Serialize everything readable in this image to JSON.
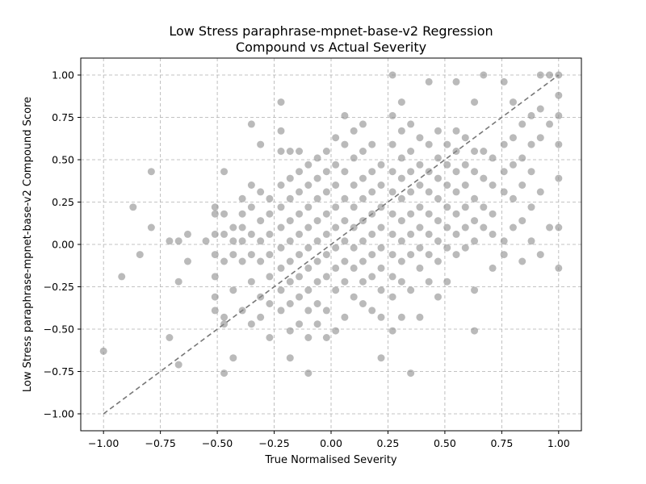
{
  "chart_data": {
    "type": "scatter",
    "title_line1": "Low Stress paraphrase-mpnet-base-v2 Regression",
    "title_line2": "Compound vs Actual Severity",
    "xlabel": "True Normalised Severity",
    "ylabel": "Low Stress paraphrase-mpnet-base-v2 Compound Score",
    "xlim": [
      -1.1,
      1.1
    ],
    "ylim": [
      -1.1,
      1.1
    ],
    "x_ticks": [
      {
        "value": -1.0,
        "label": "−1.00"
      },
      {
        "value": -0.75,
        "label": "−0.75"
      },
      {
        "value": -0.5,
        "label": "−0.50"
      },
      {
        "value": -0.25,
        "label": "−0.25"
      },
      {
        "value": 0.0,
        "label": "0.00"
      },
      {
        "value": 0.25,
        "label": "0.25"
      },
      {
        "value": 0.5,
        "label": "0.50"
      },
      {
        "value": 0.75,
        "label": "0.75"
      },
      {
        "value": 1.0,
        "label": "1.00"
      }
    ],
    "y_ticks": [
      {
        "value": -1.0,
        "label": "−1.00"
      },
      {
        "value": -0.75,
        "label": "−0.75"
      },
      {
        "value": -0.5,
        "label": "−0.50"
      },
      {
        "value": -0.25,
        "label": "−0.25"
      },
      {
        "value": 0.0,
        "label": "0.00"
      },
      {
        "value": 0.25,
        "label": "0.25"
      },
      {
        "value": 0.5,
        "label": "0.50"
      },
      {
        "value": 0.75,
        "label": "0.75"
      },
      {
        "value": 1.0,
        "label": "1.00"
      }
    ],
    "grid": true,
    "grid_style": "dashed",
    "point_color": "#8c8c8c",
    "line_color": "#777777",
    "reference_line": {
      "x": [
        -1.0,
        1.0
      ],
      "y": [
        -1.0,
        1.0
      ],
      "style": "dashed"
    },
    "points": [
      [
        -1.0,
        -0.63
      ],
      [
        -0.92,
        -0.19
      ],
      [
        -0.87,
        0.22
      ],
      [
        -0.84,
        -0.06
      ],
      [
        -0.79,
        0.43
      ],
      [
        -0.79,
        0.1
      ],
      [
        -0.71,
        -0.55
      ],
      [
        -0.71,
        0.02
      ],
      [
        -0.67,
        0.02
      ],
      [
        -0.67,
        -0.22
      ],
      [
        -0.67,
        -0.71
      ],
      [
        -0.63,
        0.06
      ],
      [
        -0.63,
        -0.1
      ],
      [
        -0.55,
        0.02
      ],
      [
        -0.51,
        0.22
      ],
      [
        -0.51,
        0.18
      ],
      [
        -0.51,
        0.06
      ],
      [
        -0.51,
        -0.06
      ],
      [
        -0.51,
        -0.19
      ],
      [
        -0.51,
        -0.31
      ],
      [
        -0.51,
        -0.39
      ],
      [
        -0.47,
        0.43
      ],
      [
        -0.47,
        0.18
      ],
      [
        -0.47,
        0.06
      ],
      [
        -0.47,
        -0.1
      ],
      [
        -0.47,
        -0.43
      ],
      [
        -0.47,
        -0.47
      ],
      [
        -0.47,
        -0.76
      ],
      [
        -0.43,
        0.1
      ],
      [
        -0.43,
        0.02
      ],
      [
        -0.43,
        -0.06
      ],
      [
        -0.43,
        -0.27
      ],
      [
        -0.43,
        -0.67
      ],
      [
        -0.39,
        0.18
      ],
      [
        -0.39,
        0.1
      ],
      [
        -0.39,
        0.02
      ],
      [
        -0.39,
        -0.1
      ],
      [
        -0.39,
        -0.39
      ],
      [
        -0.39,
        0.27
      ],
      [
        -0.35,
        0.71
      ],
      [
        -0.35,
        0.35
      ],
      [
        -0.35,
        0.22
      ],
      [
        -0.35,
        0.06
      ],
      [
        -0.35,
        -0.06
      ],
      [
        -0.35,
        -0.22
      ],
      [
        -0.35,
        -0.47
      ],
      [
        -0.31,
        0.31
      ],
      [
        -0.31,
        0.14
      ],
      [
        -0.31,
        0.02
      ],
      [
        -0.31,
        -0.1
      ],
      [
        -0.31,
        -0.31
      ],
      [
        -0.31,
        -0.43
      ],
      [
        -0.31,
        0.59
      ],
      [
        -0.27,
        0.27
      ],
      [
        -0.27,
        0.18
      ],
      [
        -0.27,
        0.06
      ],
      [
        -0.27,
        -0.06
      ],
      [
        -0.27,
        -0.19
      ],
      [
        -0.27,
        -0.35
      ],
      [
        -0.27,
        -0.55
      ],
      [
        -0.22,
        0.84
      ],
      [
        -0.22,
        0.67
      ],
      [
        -0.22,
        0.55
      ],
      [
        -0.22,
        0.35
      ],
      [
        -0.22,
        0.22
      ],
      [
        -0.22,
        0.1
      ],
      [
        -0.22,
        -0.02
      ],
      [
        -0.22,
        -0.14
      ],
      [
        -0.22,
        -0.27
      ],
      [
        -0.22,
        -0.39
      ],
      [
        -0.18,
        0.55
      ],
      [
        -0.18,
        0.39
      ],
      [
        -0.18,
        0.27
      ],
      [
        -0.18,
        0.14
      ],
      [
        -0.18,
        0.02
      ],
      [
        -0.18,
        -0.1
      ],
      [
        -0.18,
        -0.22
      ],
      [
        -0.18,
        -0.35
      ],
      [
        -0.18,
        -0.51
      ],
      [
        -0.18,
        -0.67
      ],
      [
        -0.14,
        0.55
      ],
      [
        -0.14,
        0.43
      ],
      [
        -0.14,
        0.31
      ],
      [
        -0.14,
        0.18
      ],
      [
        -0.14,
        0.06
      ],
      [
        -0.14,
        -0.06
      ],
      [
        -0.14,
        -0.19
      ],
      [
        -0.14,
        -0.31
      ],
      [
        -0.14,
        -0.47
      ],
      [
        -0.1,
        0.47
      ],
      [
        -0.1,
        0.35
      ],
      [
        -0.1,
        0.22
      ],
      [
        -0.1,
        0.1
      ],
      [
        -0.1,
        -0.02
      ],
      [
        -0.1,
        -0.14
      ],
      [
        -0.1,
        -0.27
      ],
      [
        -0.1,
        -0.39
      ],
      [
        -0.1,
        -0.55
      ],
      [
        -0.1,
        -0.76
      ],
      [
        -0.06,
        0.51
      ],
      [
        -0.06,
        0.39
      ],
      [
        -0.06,
        0.27
      ],
      [
        -0.06,
        0.14
      ],
      [
        -0.06,
        0.02
      ],
      [
        -0.06,
        -0.1
      ],
      [
        -0.06,
        -0.22
      ],
      [
        -0.06,
        -0.35
      ],
      [
        -0.06,
        -0.47
      ],
      [
        -0.02,
        0.55
      ],
      [
        -0.02,
        0.43
      ],
      [
        -0.02,
        0.31
      ],
      [
        -0.02,
        0.18
      ],
      [
        -0.02,
        0.06
      ],
      [
        -0.02,
        -0.06
      ],
      [
        -0.02,
        -0.19
      ],
      [
        -0.02,
        -0.39
      ],
      [
        -0.02,
        -0.55
      ],
      [
        0.02,
        0.63
      ],
      [
        0.02,
        0.47
      ],
      [
        0.02,
        0.35
      ],
      [
        0.02,
        0.22
      ],
      [
        0.02,
        0.1
      ],
      [
        0.02,
        -0.02
      ],
      [
        0.02,
        -0.14
      ],
      [
        0.02,
        -0.27
      ],
      [
        0.02,
        -0.51
      ],
      [
        0.06,
        0.76
      ],
      [
        0.06,
        0.59
      ],
      [
        0.06,
        0.43
      ],
      [
        0.06,
        0.27
      ],
      [
        0.06,
        0.14
      ],
      [
        0.06,
        0.02
      ],
      [
        0.06,
        -0.1
      ],
      [
        0.06,
        -0.22
      ],
      [
        0.06,
        -0.43
      ],
      [
        0.1,
        0.67
      ],
      [
        0.1,
        0.51
      ],
      [
        0.1,
        0.35
      ],
      [
        0.1,
        0.22
      ],
      [
        0.1,
        0.1
      ],
      [
        0.1,
        -0.02
      ],
      [
        0.1,
        -0.14
      ],
      [
        0.1,
        -0.31
      ],
      [
        0.14,
        0.71
      ],
      [
        0.14,
        0.55
      ],
      [
        0.14,
        0.39
      ],
      [
        0.14,
        0.27
      ],
      [
        0.14,
        0.14
      ],
      [
        0.14,
        0.02
      ],
      [
        0.14,
        -0.1
      ],
      [
        0.14,
        -0.22
      ],
      [
        0.14,
        -0.35
      ],
      [
        0.18,
        0.59
      ],
      [
        0.18,
        0.43
      ],
      [
        0.18,
        0.31
      ],
      [
        0.18,
        0.18
      ],
      [
        0.18,
        0.06
      ],
      [
        0.18,
        -0.06
      ],
      [
        0.18,
        -0.19
      ],
      [
        0.18,
        -0.39
      ],
      [
        0.22,
        0.47
      ],
      [
        0.22,
        0.35
      ],
      [
        0.22,
        0.22
      ],
      [
        0.22,
        0.1
      ],
      [
        0.22,
        -0.02
      ],
      [
        0.22,
        -0.14
      ],
      [
        0.22,
        -0.27
      ],
      [
        0.22,
        -0.43
      ],
      [
        0.22,
        -0.67
      ],
      [
        0.27,
        1.0
      ],
      [
        0.27,
        0.76
      ],
      [
        0.27,
        0.59
      ],
      [
        0.27,
        0.43
      ],
      [
        0.27,
        0.31
      ],
      [
        0.27,
        0.18
      ],
      [
        0.27,
        0.06
      ],
      [
        0.27,
        -0.06
      ],
      [
        0.27,
        -0.19
      ],
      [
        0.27,
        -0.31
      ],
      [
        0.27,
        -0.51
      ],
      [
        0.31,
        0.84
      ],
      [
        0.31,
        0.67
      ],
      [
        0.31,
        0.51
      ],
      [
        0.31,
        0.39
      ],
      [
        0.31,
        0.27
      ],
      [
        0.31,
        0.14
      ],
      [
        0.31,
        0.02
      ],
      [
        0.31,
        -0.1
      ],
      [
        0.31,
        -0.22
      ],
      [
        0.31,
        -0.43
      ],
      [
        0.35,
        0.71
      ],
      [
        0.35,
        0.55
      ],
      [
        0.35,
        0.43
      ],
      [
        0.35,
        0.31
      ],
      [
        0.35,
        0.18
      ],
      [
        0.35,
        0.06
      ],
      [
        0.35,
        -0.06
      ],
      [
        0.35,
        -0.27
      ],
      [
        0.35,
        -0.76
      ],
      [
        0.39,
        0.63
      ],
      [
        0.39,
        0.47
      ],
      [
        0.39,
        0.35
      ],
      [
        0.39,
        0.22
      ],
      [
        0.39,
        0.1
      ],
      [
        0.39,
        -0.02
      ],
      [
        0.39,
        -0.14
      ],
      [
        0.39,
        -0.43
      ],
      [
        0.43,
        0.96
      ],
      [
        0.43,
        0.59
      ],
      [
        0.43,
        0.43
      ],
      [
        0.43,
        0.31
      ],
      [
        0.43,
        0.18
      ],
      [
        0.43,
        0.06
      ],
      [
        0.43,
        -0.06
      ],
      [
        0.43,
        -0.22
      ],
      [
        0.47,
        0.67
      ],
      [
        0.47,
        0.51
      ],
      [
        0.47,
        0.39
      ],
      [
        0.47,
        0.27
      ],
      [
        0.47,
        0.14
      ],
      [
        0.47,
        0.02
      ],
      [
        0.47,
        -0.1
      ],
      [
        0.47,
        -0.31
      ],
      [
        0.51,
        0.59
      ],
      [
        0.51,
        0.47
      ],
      [
        0.51,
        0.35
      ],
      [
        0.51,
        0.22
      ],
      [
        0.51,
        0.1
      ],
      [
        0.51,
        -0.02
      ],
      [
        0.51,
        -0.22
      ],
      [
        0.55,
        0.96
      ],
      [
        0.55,
        0.67
      ],
      [
        0.55,
        0.55
      ],
      [
        0.55,
        0.43
      ],
      [
        0.55,
        0.31
      ],
      [
        0.55,
        0.18
      ],
      [
        0.55,
        0.06
      ],
      [
        0.55,
        -0.06
      ],
      [
        0.59,
        0.63
      ],
      [
        0.59,
        0.47
      ],
      [
        0.59,
        0.35
      ],
      [
        0.59,
        0.22
      ],
      [
        0.59,
        0.1
      ],
      [
        0.59,
        -0.02
      ],
      [
        0.63,
        0.84
      ],
      [
        0.63,
        0.55
      ],
      [
        0.63,
        0.43
      ],
      [
        0.63,
        0.27
      ],
      [
        0.63,
        0.14
      ],
      [
        0.63,
        0.02
      ],
      [
        0.63,
        -0.27
      ],
      [
        0.63,
        -0.51
      ],
      [
        0.67,
        1.0
      ],
      [
        0.67,
        0.55
      ],
      [
        0.67,
        0.39
      ],
      [
        0.67,
        0.22
      ],
      [
        0.67,
        0.1
      ],
      [
        0.71,
        0.51
      ],
      [
        0.71,
        0.35
      ],
      [
        0.71,
        0.18
      ],
      [
        0.71,
        0.06
      ],
      [
        0.71,
        -0.14
      ],
      [
        0.76,
        0.96
      ],
      [
        0.76,
        0.59
      ],
      [
        0.76,
        0.43
      ],
      [
        0.76,
        0.31
      ],
      [
        0.76,
        0.02
      ],
      [
        0.76,
        -0.06
      ],
      [
        0.8,
        0.84
      ],
      [
        0.8,
        0.63
      ],
      [
        0.8,
        0.47
      ],
      [
        0.8,
        0.27
      ],
      [
        0.8,
        0.1
      ],
      [
        0.84,
        0.71
      ],
      [
        0.84,
        0.51
      ],
      [
        0.84,
        0.35
      ],
      [
        0.84,
        0.14
      ],
      [
        0.84,
        -0.1
      ],
      [
        0.88,
        0.76
      ],
      [
        0.88,
        0.59
      ],
      [
        0.88,
        0.43
      ],
      [
        0.88,
        0.22
      ],
      [
        0.88,
        0.02
      ],
      [
        0.92,
        1.0
      ],
      [
        0.92,
        0.8
      ],
      [
        0.92,
        0.63
      ],
      [
        0.92,
        0.31
      ],
      [
        0.92,
        -0.06
      ],
      [
        0.96,
        1.0
      ],
      [
        0.96,
        0.71
      ],
      [
        0.96,
        0.1
      ],
      [
        1.0,
        1.0
      ],
      [
        1.0,
        0.88
      ],
      [
        1.0,
        0.76
      ],
      [
        1.0,
        0.59
      ],
      [
        1.0,
        0.39
      ],
      [
        1.0,
        0.1
      ],
      [
        1.0,
        -0.14
      ]
    ]
  }
}
